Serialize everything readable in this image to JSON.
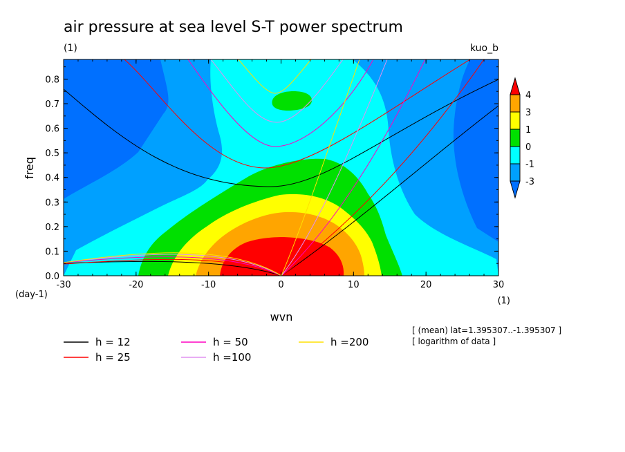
{
  "chart_data": {
    "type": "heatmap",
    "title": "air pressure at sea level S-T power spectrum",
    "units": "(1)",
    "corner_label": "kuo_b",
    "xlabel": "wvn",
    "x_units": "(1)",
    "ylabel": "freq",
    "y_units": "(day-1)",
    "xlim": [
      -30,
      30
    ],
    "ylim": [
      0,
      0.88
    ],
    "x_ticks": [
      "-30",
      "-20",
      "-10",
      "0",
      "10",
      "20",
      "30"
    ],
    "y_ticks": [
      "0.0",
      "0.1",
      "0.2",
      "0.3",
      "0.4",
      "0.5",
      "0.6",
      "0.7",
      "0.8"
    ],
    "colorbar": {
      "levels": [
        "4",
        "3",
        "1",
        "0",
        "-1",
        "-3"
      ],
      "colors": [
        "#ff0000",
        "#ffa500",
        "#ffff00",
        "#00e000",
        "#00ffff",
        "#00a0ff",
        "#0070ff"
      ]
    },
    "dispersion_curves": [
      {
        "name": "h = 12",
        "color": "#000000"
      },
      {
        "name": "h = 25",
        "color": "#ff0000"
      },
      {
        "name": "h = 50",
        "color": "#ff00c0"
      },
      {
        "name": "h =100",
        "color": "#e090f0"
      },
      {
        "name": "h =200",
        "color": "#ffe000"
      }
    ],
    "notes": [
      "[ (mean) lat=1.395307..-1.395307 ]",
      "[ logarithm of data ]"
    ]
  }
}
